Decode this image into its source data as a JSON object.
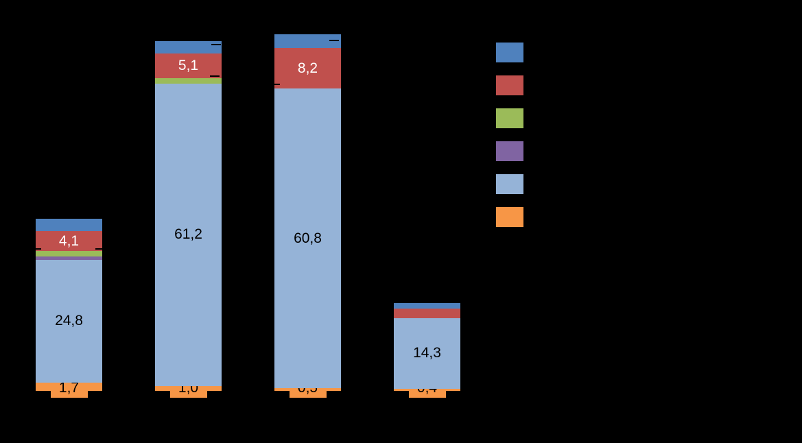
{
  "chart_data": {
    "type": "bar",
    "stacked": true,
    "background": "#000000",
    "decimal_separator": ",",
    "axis_labels_visible": false,
    "title": "",
    "xlabel": "",
    "ylabel": "",
    "ylim": [
      0,
      75
    ],
    "categories": [
      "",
      "",
      "",
      ""
    ],
    "series": [
      {
        "name": "orange",
        "color": "#F79646",
        "values": [
          1.7,
          1.0,
          0.5,
          0.4
        ],
        "labels": [
          "1,7",
          "1,0",
          "0,5",
          "0,4"
        ],
        "label_style": "orange-box"
      },
      {
        "name": "light-blue",
        "color": "#95B3D7",
        "values": [
          24.8,
          61.2,
          60.8,
          14.3
        ],
        "labels": [
          "24,8",
          "61,2",
          "60,8",
          "14,3"
        ],
        "label_style": "dark-on-light"
      },
      {
        "name": "purple",
        "color": "#8064A2",
        "values": [
          0.7,
          0,
          0,
          0
        ],
        "labels": [
          "",
          "",
          "",
          ""
        ]
      },
      {
        "name": "green",
        "color": "#9BBB59",
        "values": [
          1.1,
          1.1,
          0,
          0
        ],
        "labels": [
          "",
          "",
          "",
          ""
        ]
      },
      {
        "name": "red",
        "color": "#C0504D",
        "values": [
          4.1,
          5.1,
          8.2,
          2.0
        ],
        "labels": [
          "4,1",
          "5,1",
          "8,2",
          ""
        ],
        "label_style": "light-on-dark"
      },
      {
        "name": "blue",
        "color": "#4F81BD",
        "values": [
          2.5,
          2.5,
          2.7,
          1.1
        ],
        "labels": [
          "",
          "",
          "",
          ""
        ]
      }
    ],
    "legend": {
      "position": "right",
      "labels_visible": false,
      "swatches": [
        "#4F81BD",
        "#C0504D",
        "#9BBB59",
        "#8064A2",
        "#95B3D7",
        "#F79646"
      ]
    }
  }
}
